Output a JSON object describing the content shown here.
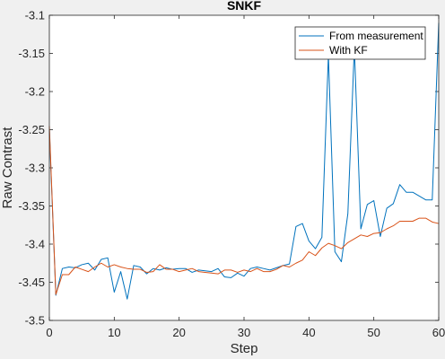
{
  "chart_data": {
    "type": "line",
    "title": "SNKF",
    "xlabel": "Step",
    "ylabel": "Raw Contrast",
    "xlim": [
      0,
      60
    ],
    "ylim": [
      -3.5,
      -3.1
    ],
    "xticks": [
      0,
      10,
      20,
      30,
      40,
      50,
      60
    ],
    "yticks": [
      -3.5,
      -3.45,
      -3.4,
      -3.35,
      -3.3,
      -3.25,
      -3.2,
      -3.15,
      -3.1
    ],
    "xtick_labels": [
      "0",
      "10",
      "20",
      "30",
      "40",
      "50",
      "60"
    ],
    "ytick_labels": [
      "-3.5",
      "-3.45",
      "-3.4",
      "-3.35",
      "-3.3",
      "-3.25",
      "-3.2",
      "-3.15",
      "-3.1"
    ],
    "grid": false,
    "legend_position": "top-right",
    "x": [
      0,
      1,
      2,
      3,
      4,
      5,
      6,
      7,
      8,
      9,
      10,
      11,
      12,
      13,
      14,
      15,
      16,
      17,
      18,
      19,
      20,
      21,
      22,
      23,
      24,
      25,
      26,
      27,
      28,
      29,
      30,
      31,
      32,
      33,
      34,
      35,
      36,
      37,
      38,
      39,
      40,
      41,
      42,
      43,
      44,
      45,
      46,
      47,
      48,
      49,
      50,
      51,
      52,
      53,
      54,
      55,
      56,
      57,
      58,
      59,
      60
    ],
    "series": [
      {
        "name": "From measurement",
        "color": "#0072bd",
        "values": [
          -3.25,
          -3.467,
          -3.432,
          -3.43,
          -3.431,
          -3.427,
          -3.425,
          -3.434,
          -3.42,
          -3.418,
          -3.463,
          -3.436,
          -3.472,
          -3.428,
          -3.43,
          -3.439,
          -3.432,
          -3.434,
          -3.431,
          -3.433,
          -3.432,
          -3.432,
          -3.437,
          -3.434,
          -3.435,
          -3.436,
          -3.432,
          -3.443,
          -3.444,
          -3.438,
          -3.442,
          -3.432,
          -3.43,
          -3.432,
          -3.434,
          -3.431,
          -3.428,
          -3.426,
          -3.377,
          -3.373,
          -3.396,
          -3.406,
          -3.391,
          -3.152,
          -3.41,
          -3.423,
          -3.36,
          -3.142,
          -3.38,
          -3.348,
          -3.343,
          -3.39,
          -3.353,
          -3.347,
          -3.322,
          -3.332,
          -3.332,
          -3.337,
          -3.342,
          -3.342,
          -3.11
        ]
      },
      {
        "name": "With KF",
        "color": "#d95319",
        "values": [
          -3.245,
          -3.466,
          -3.44,
          -3.44,
          -3.43,
          -3.433,
          -3.436,
          -3.43,
          -3.425,
          -3.43,
          -3.427,
          -3.43,
          -3.432,
          -3.433,
          -3.433,
          -3.437,
          -3.436,
          -3.427,
          -3.433,
          -3.433,
          -3.436,
          -3.434,
          -3.432,
          -3.436,
          -3.437,
          -3.438,
          -3.439,
          -3.434,
          -3.434,
          -3.437,
          -3.434,
          -3.436,
          -3.432,
          -3.436,
          -3.436,
          -3.433,
          -3.428,
          -3.43,
          -3.425,
          -3.421,
          -3.41,
          -3.415,
          -3.405,
          -3.399,
          -3.402,
          -3.406,
          -3.398,
          -3.393,
          -3.388,
          -3.39,
          -3.386,
          -3.385,
          -3.38,
          -3.376,
          -3.37,
          -3.37,
          -3.37,
          -3.366,
          -3.366,
          -3.371,
          -3.373
        ]
      }
    ]
  }
}
